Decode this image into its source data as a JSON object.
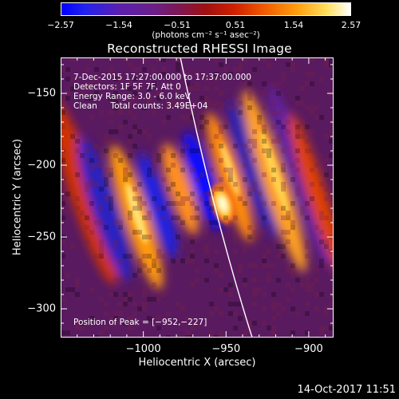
{
  "chart_data": {
    "type": "heatmap",
    "title": "Reconstructed RHESSI Image",
    "xlabel": "Heliocentric X (arcsec)",
    "ylabel": "Heliocentric Y (arcsec)",
    "xlim": [
      -1050,
      -885
    ],
    "ylim": [
      -320,
      -125
    ],
    "xticks": [
      -1000,
      -950,
      -900
    ],
    "xtick_labels": [
      "−1000",
      "−950",
      "−900"
    ],
    "yticks": [
      -150,
      -200,
      -250,
      -300
    ],
    "ytick_labels": [
      "−150",
      "−200",
      "−250",
      "−300"
    ],
    "colorbar": {
      "ticks": [
        -2.57,
        -1.54,
        -0.51,
        0.51,
        1.54,
        2.57
      ],
      "tick_labels": [
        "−2.57",
        "−1.54",
        "−0.51",
        "0.51",
        "1.54",
        "2.57"
      ],
      "units": "(photons cm⁻² s⁻¹ asec⁻²)",
      "colormap": [
        "#0000ff",
        "#5a1fb0",
        "#7a1858",
        "#d02000",
        "#ffa010",
        "#ffffff"
      ]
    },
    "peak": {
      "x": -952,
      "y": -227
    },
    "annotations": {
      "time": "7-Dec-2015 17:27:00.000 to 17:37:00.000",
      "detectors": "Detectors: 1F 5F 7F, Att 0",
      "energy": "Energy Range: 3.0 - 6.0 keV",
      "clean": "Clean     Total counts: 3.49E+04",
      "peak_position": "Position of Peak = [−952,−227]"
    }
  },
  "timestamp": "14-Oct-2017 11:51"
}
